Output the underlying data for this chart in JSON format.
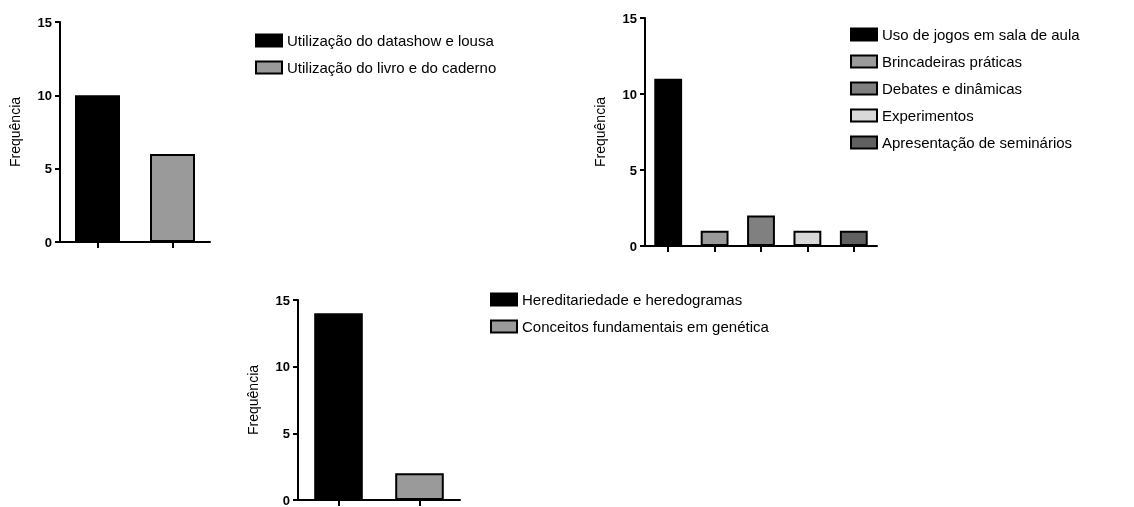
{
  "chart_data": [
    {
      "type": "bar",
      "ylabel": "Frequência",
      "categories": [
        null,
        null
      ],
      "series": [
        {
          "name": "Utilização do datashow e lousa",
          "color": "#000000",
          "values": [
            10,
            null
          ]
        },
        {
          "name": "Utilização do livro e do caderno",
          "color": "#9a9a9a",
          "values": [
            null,
            6
          ]
        }
      ],
      "ylim": [
        0,
        15
      ],
      "yticks": [
        0,
        5,
        10,
        15
      ],
      "grid": false,
      "legend": "right",
      "tick_labels": "y"
    },
    {
      "type": "bar",
      "ylabel": "Frequência",
      "categories": [
        null,
        null,
        null,
        null,
        null
      ],
      "series": [
        {
          "name": "Uso de jogos em sala de aula",
          "color": "#000000",
          "values": [
            11,
            null,
            null,
            null,
            null
          ]
        },
        {
          "name": "Brincadeiras práticas",
          "color": "#9a9a9a",
          "values": [
            null,
            1,
            null,
            null,
            null
          ]
        },
        {
          "name": "Debates e dinâmicas",
          "color": "#808080",
          "values": [
            null,
            null,
            2,
            null,
            null
          ]
        },
        {
          "name": "Experimentos",
          "color": "#d8d8d8",
          "values": [
            null,
            null,
            null,
            1,
            null
          ]
        },
        {
          "name": "Apresentação de seminários",
          "color": "#606060",
          "values": [
            null,
            null,
            null,
            null,
            1
          ]
        }
      ],
      "ylim": [
        0,
        15
      ],
      "yticks": [
        0,
        5,
        10,
        15
      ],
      "grid": false,
      "legend": "right",
      "tick_labels": "y"
    },
    {
      "type": "bar",
      "ylabel": "Frequência",
      "categories": [
        null,
        null
      ],
      "series": [
        {
          "name": "Hereditariedade e heredogramas",
          "color": "#000000",
          "values": [
            14,
            null
          ]
        },
        {
          "name": "Conceitos fundamentais em genética",
          "color": "#9a9a9a",
          "values": [
            null,
            2
          ]
        }
      ],
      "ylim": [
        0,
        15
      ],
      "yticks": [
        0,
        5,
        10,
        15
      ],
      "grid": false,
      "legend": "right",
      "tick_labels": "y"
    }
  ]
}
